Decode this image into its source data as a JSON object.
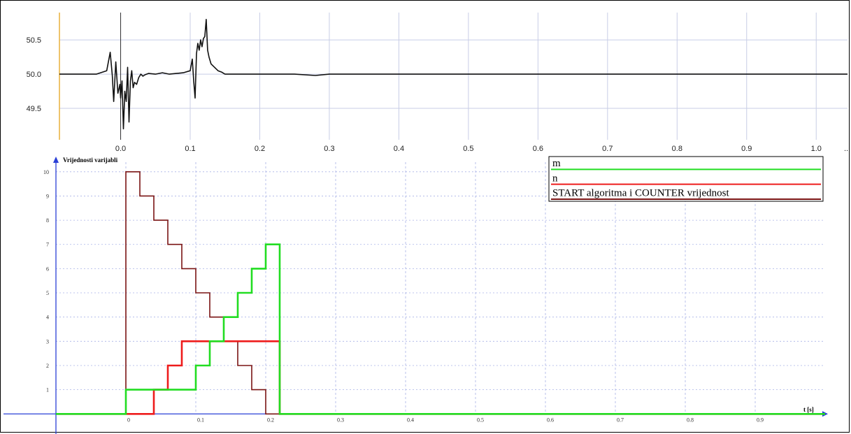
{
  "chart_data": [
    {
      "type": "line",
      "title": "",
      "xlabel": "",
      "ylabel": "",
      "xlim": [
        -0.088,
        1.045
      ],
      "ylim": [
        49.04,
        50.9
      ],
      "x_ticks": [
        "0.0",
        "0.1",
        "0.2",
        "0.3",
        "0.4",
        "0.5",
        "0.6",
        "0.7",
        "0.8",
        "0.9",
        "1.0"
      ],
      "x_tick_values": [
        0,
        0.1,
        0.2,
        0.3,
        0.4,
        0.5,
        0.6,
        0.7,
        0.8,
        0.9,
        1.0
      ],
      "y_ticks": [
        "49.5",
        "50.0",
        "50.5"
      ],
      "y_tick_values": [
        49.5,
        50.0,
        50.5
      ],
      "grid": true,
      "colors": {
        "line": "#111111",
        "y_axis": "#e8b13c",
        "grid": "#c8cde6"
      },
      "series": [
        {
          "x": [
            -0.088,
            -0.06,
            -0.035,
            -0.02,
            -0.015,
            -0.012,
            -0.01,
            -0.007,
            -0.004,
            -0.001,
            0.0,
            0.002,
            0.004,
            0.006,
            0.008,
            0.01,
            0.012,
            0.014,
            0.016,
            0.018,
            0.02,
            0.023,
            0.026,
            0.029,
            0.032,
            0.035,
            0.04,
            0.05,
            0.06,
            0.07,
            0.08,
            0.09,
            0.1,
            0.103,
            0.105,
            0.107,
            0.109,
            0.111,
            0.113,
            0.115,
            0.117,
            0.119,
            0.121,
            0.123,
            0.125,
            0.127,
            0.13,
            0.135,
            0.14,
            0.145,
            0.15,
            0.16,
            0.2,
            0.25,
            0.28,
            0.3,
            0.4,
            0.5,
            0.6,
            0.7,
            0.8,
            0.9,
            1.0,
            1.045
          ],
          "y": [
            50.0,
            50.0,
            50.0,
            50.05,
            50.32,
            49.98,
            49.6,
            50.18,
            49.72,
            49.85,
            49.65,
            49.9,
            49.2,
            49.75,
            49.6,
            50.1,
            49.3,
            49.9,
            50.05,
            49.8,
            49.88,
            49.85,
            49.95,
            50.0,
            49.97,
            49.99,
            50.01,
            50.0,
            50.02,
            50.0,
            50.01,
            50.02,
            50.05,
            50.22,
            49.9,
            49.65,
            50.3,
            50.45,
            50.35,
            50.5,
            50.4,
            50.52,
            50.55,
            50.8,
            50.35,
            50.25,
            50.15,
            50.1,
            50.05,
            50.03,
            50.0,
            50.0,
            50.0,
            50.0,
            49.98,
            50.0,
            50.0,
            50.0,
            50.0,
            50.0,
            50.0,
            50.0,
            50.0,
            50.0
          ]
        }
      ]
    },
    {
      "type": "line",
      "title": "",
      "xlabel": "t [s]",
      "ylabel": "Vrijednosti varijabli",
      "xlim": [
        -0.1,
        1.0
      ],
      "ylim": [
        -0.8,
        10.6
      ],
      "x_ticks": [
        "0",
        "0.1",
        "0.2",
        "0.3",
        "0.4",
        "0.5",
        "0.6",
        "0.7",
        "0.8",
        "0.9"
      ],
      "x_tick_values": [
        0,
        0.1,
        0.2,
        0.3,
        0.4,
        0.5,
        0.6,
        0.7,
        0.8,
        0.9
      ],
      "y_ticks": [
        "1",
        "2",
        "3",
        "4",
        "5",
        "6",
        "7",
        "8",
        "9",
        "10"
      ],
      "y_tick_values": [
        1,
        2,
        3,
        4,
        5,
        6,
        7,
        8,
        9,
        10
      ],
      "grid": true,
      "legend_position": "top-right",
      "colors": {
        "axis": "#2a3fd6",
        "grid": "#a9b2e6",
        "legend_border": "#000000"
      },
      "series": [
        {
          "name": "m",
          "color": "#22dd22",
          "step": "post",
          "x": [
            -0.1,
            0.0,
            0.04,
            0.06,
            0.08,
            0.1,
            0.12,
            0.14,
            0.16,
            0.18,
            0.2,
            0.22,
            1.0
          ],
          "y": [
            0,
            1,
            1,
            1,
            1,
            2,
            3,
            4,
            5,
            6,
            7,
            0,
            0
          ]
        },
        {
          "name": "n",
          "color": "#ee1c1c",
          "step": "post",
          "x": [
            -0.1,
            0.0,
            0.04,
            0.06,
            0.08,
            0.1,
            0.22,
            1.0
          ],
          "y": [
            0,
            0,
            1,
            2,
            3,
            3,
            0,
            0
          ]
        },
        {
          "name": "START algoritma i COUNTER vrijednost",
          "color": "#7a1414",
          "step": "post",
          "x": [
            -0.1,
            0.0,
            0.02,
            0.04,
            0.06,
            0.08,
            0.1,
            0.12,
            0.14,
            0.16,
            0.18,
            0.2,
            1.0
          ],
          "y": [
            0,
            10,
            9,
            8,
            7,
            6,
            5,
            4,
            3,
            2,
            1,
            0,
            0
          ]
        }
      ]
    }
  ]
}
